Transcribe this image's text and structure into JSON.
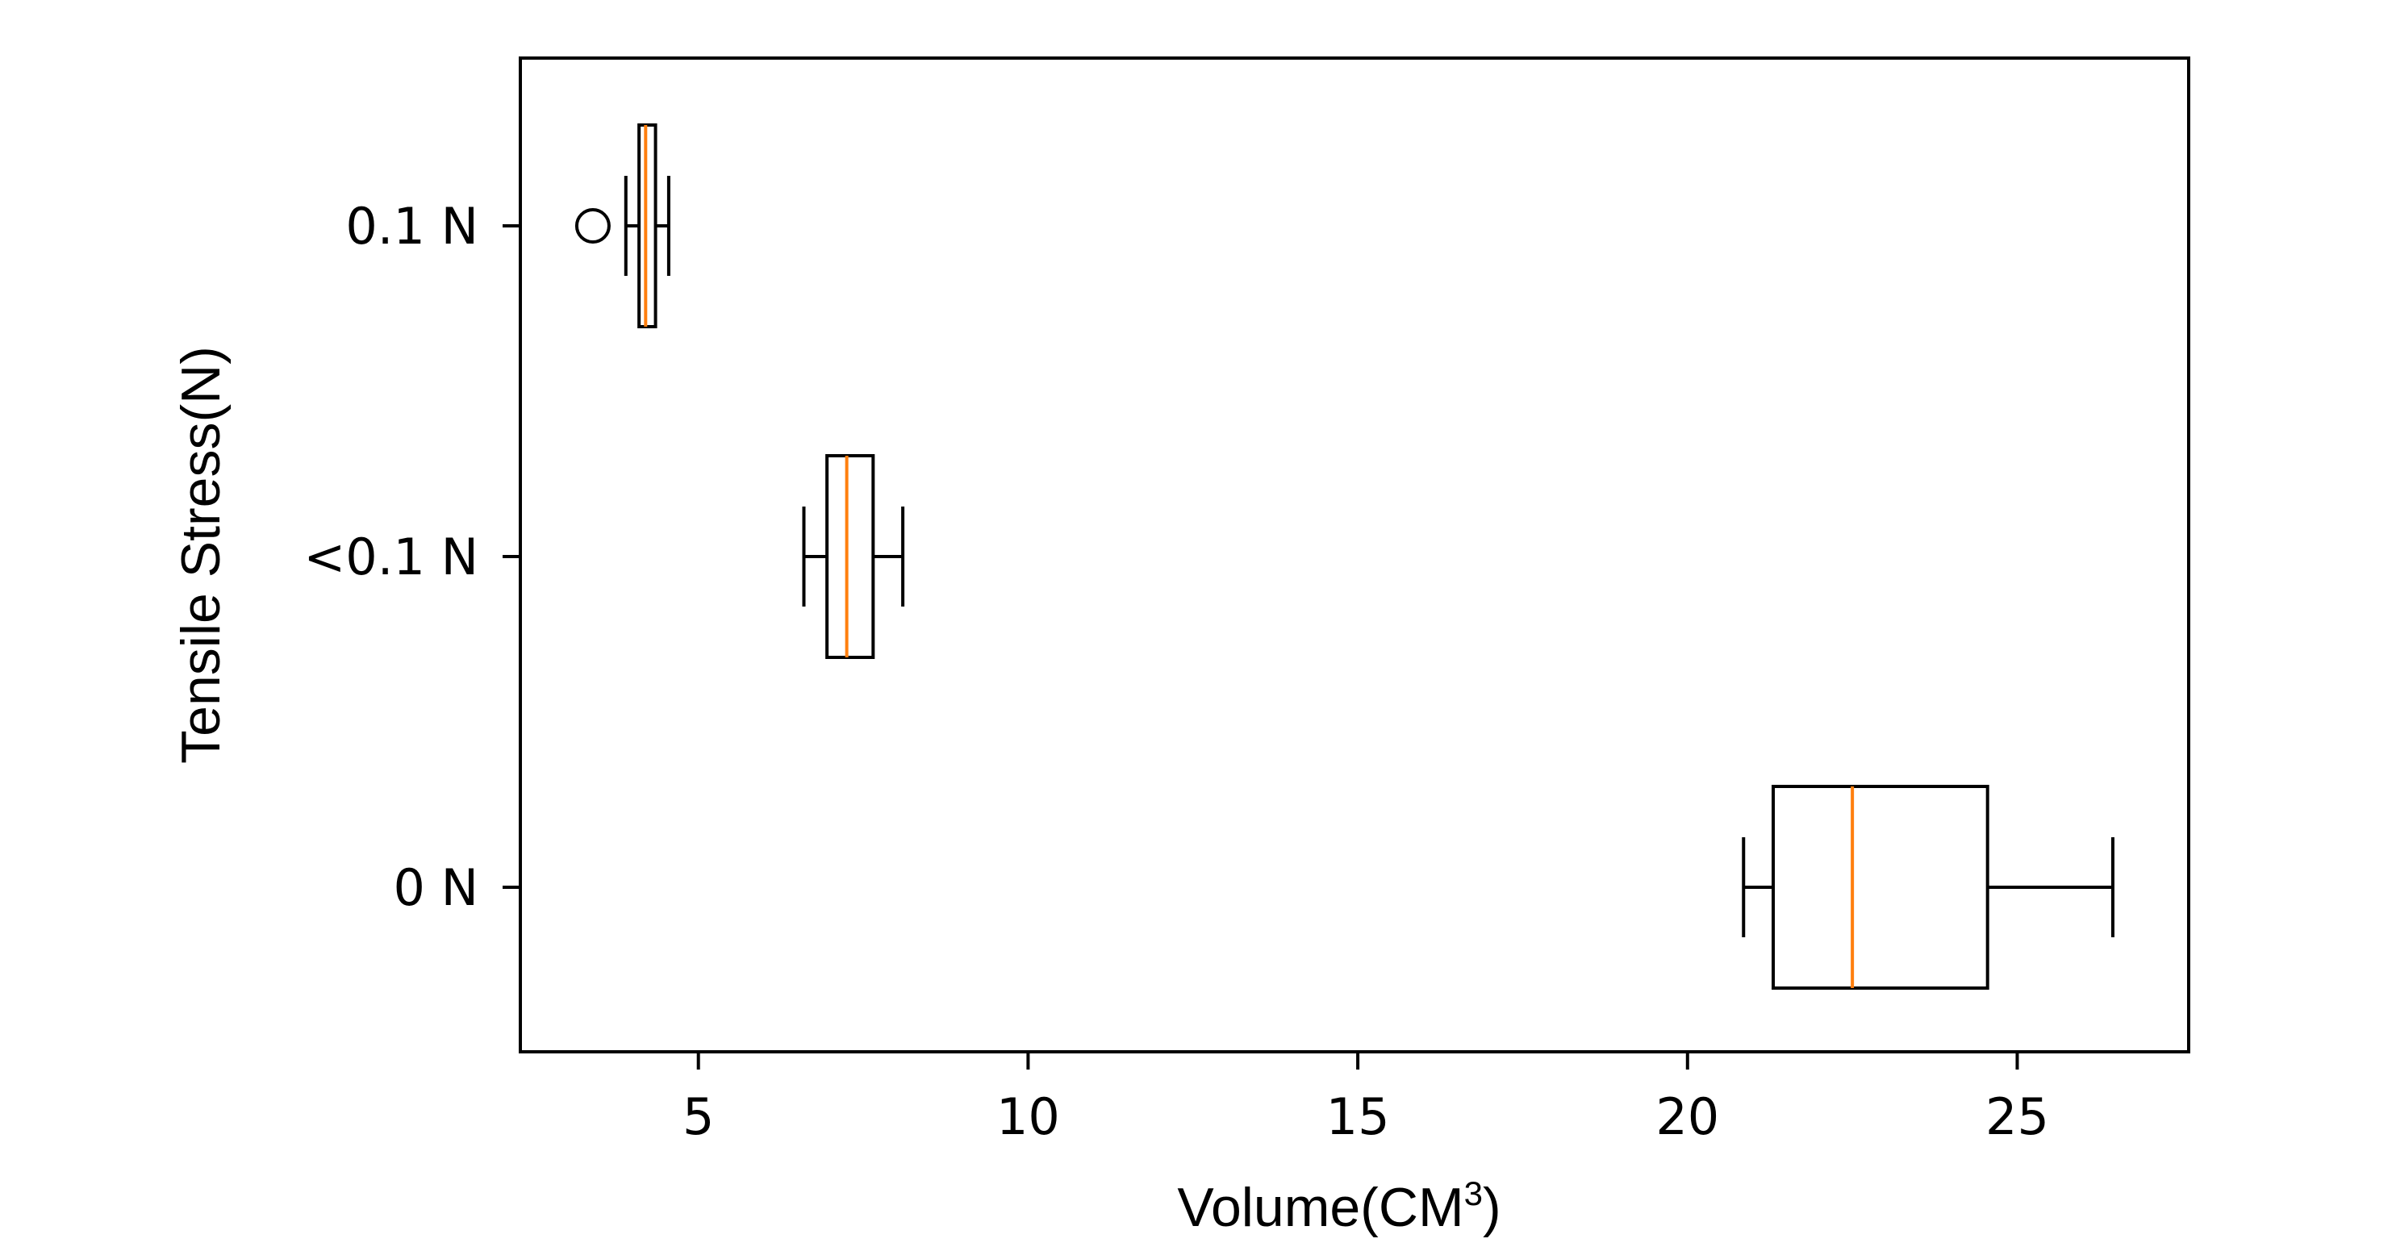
{
  "chart_data": {
    "type": "boxplot",
    "orientation": "horizontal",
    "xlabel": "Volume(CM",
    "xlabel_superscript": "3",
    "xlabel_suffix": ")",
    "ylabel": "Tensile Stress(N)",
    "xlim": [
      2.3,
      27.6
    ],
    "xticks": [
      5,
      10,
      15,
      20,
      25
    ],
    "xtick_labels": [
      "5",
      "10",
      "15",
      "20",
      "25"
    ],
    "grid": false,
    "series": [
      {
        "label": "0.1 N",
        "whisker_low": 3.9,
        "q1": 4.1,
        "median": 4.2,
        "q3": 4.35,
        "whisker_high": 4.55,
        "outliers": [
          3.4
        ]
      },
      {
        "label": "<0.1 N",
        "whisker_low": 6.6,
        "q1": 6.95,
        "median": 7.25,
        "q3": 7.65,
        "whisker_high": 8.1,
        "outliers": []
      },
      {
        "label": "0 N",
        "whisker_low": 20.85,
        "q1": 21.3,
        "median": 22.5,
        "q3": 24.55,
        "whisker_high": 26.45,
        "outliers": []
      }
    ],
    "colors": {
      "box": "#000000",
      "median": "#ff7f0e"
    }
  }
}
